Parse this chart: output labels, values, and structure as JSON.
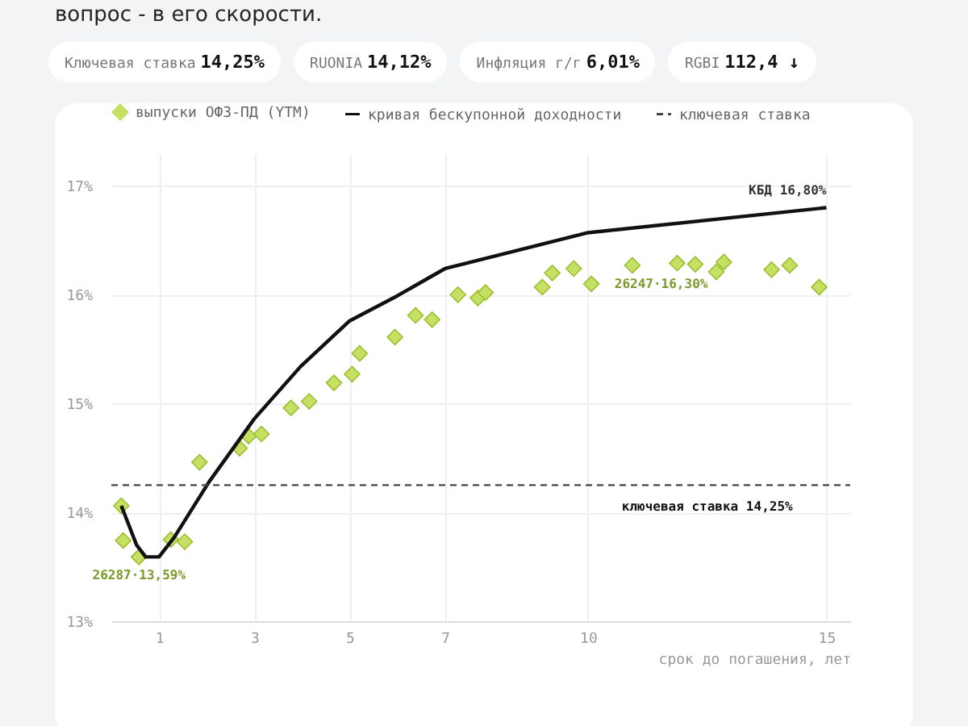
{
  "chart_data": {
    "type": "scatter",
    "annotations": [
      "вопрос - в его скорости.",
      "Ключевая ставка 14,25%",
      "RUONIA 14,12%",
      "Инфляция г/г 6,01%",
      "RGBI 112,4 ↓",
      {
        "text": "КБД 16,80%",
        "x": 15,
        "y": 16.8
      },
      {
        "text": "26287·13,59%",
        "x": 0.58,
        "y": 13.59
      },
      {
        "text": "26247·16,30%",
        "x": 12.85,
        "y": 16.3
      },
      {
        "text": "ключевая ставка 14,25%",
        "x": 12.5,
        "y": 14.25
      }
    ],
    "xlabel": "срок до погашения, лет",
    "xlim": [
      0,
      15.5
    ],
    "xticks": [
      1,
      3,
      5,
      7,
      10,
      15
    ],
    "ylim": [
      13,
      17.3
    ],
    "yticks": [
      {
        "value": 13,
        "label": "13%"
      },
      {
        "value": 14,
        "label": "14%"
      },
      {
        "value": 15,
        "label": "15%"
      },
      {
        "value": 16,
        "label": "16%"
      },
      {
        "value": 17,
        "label": "17%"
      }
    ],
    "grid": true,
    "legend": "top left",
    "series": [
      {
        "name": "выпуски ОФЗ-ПД (YTM)",
        "marker": "diamond",
        "color": "#c5e063",
        "x": [
          0.21,
          0.25,
          0.58,
          1.25,
          1.54,
          1.85,
          2.69,
          2.88,
          3.15,
          3.77,
          4.15,
          4.67,
          5.05,
          5.21,
          5.95,
          6.38,
          6.73,
          7.27,
          7.69,
          7.85,
          9.04,
          9.25,
          9.7,
          10.07,
          10.93,
          11.87,
          12.25,
          12.69,
          12.85,
          13.85,
          14.23,
          14.85
        ],
        "values": [
          14.06,
          13.74,
          13.59,
          13.75,
          13.73,
          14.46,
          14.59,
          14.7,
          14.72,
          14.96,
          15.02,
          15.19,
          15.27,
          15.46,
          15.61,
          15.81,
          15.77,
          16.0,
          15.97,
          16.02,
          16.07,
          16.2,
          16.24,
          16.1,
          16.27,
          16.29,
          16.28,
          16.21,
          16.3,
          16.23,
          16.27,
          16.07
        ]
      },
      {
        "name": "кривая бескупонной доходности",
        "type": "line",
        "line_style": "solid",
        "color": "#111111",
        "x": [
          0.21,
          0.53,
          0.72,
          1.0,
          1.32,
          2.05,
          3.0,
          3.97,
          5.0,
          6.0,
          7.0,
          7.36,
          10.0,
          15.0
        ],
        "values": [
          14.06,
          13.7,
          13.59,
          13.59,
          13.77,
          14.28,
          14.86,
          15.34,
          15.76,
          15.99,
          16.24,
          16.28,
          16.57,
          16.8
        ]
      },
      {
        "name": "ключевая ставка",
        "type": "line",
        "line_style": "dashed",
        "color": "#444444",
        "x": [
          0,
          15.5
        ],
        "values": [
          14.25,
          14.25
        ]
      }
    ]
  }
}
